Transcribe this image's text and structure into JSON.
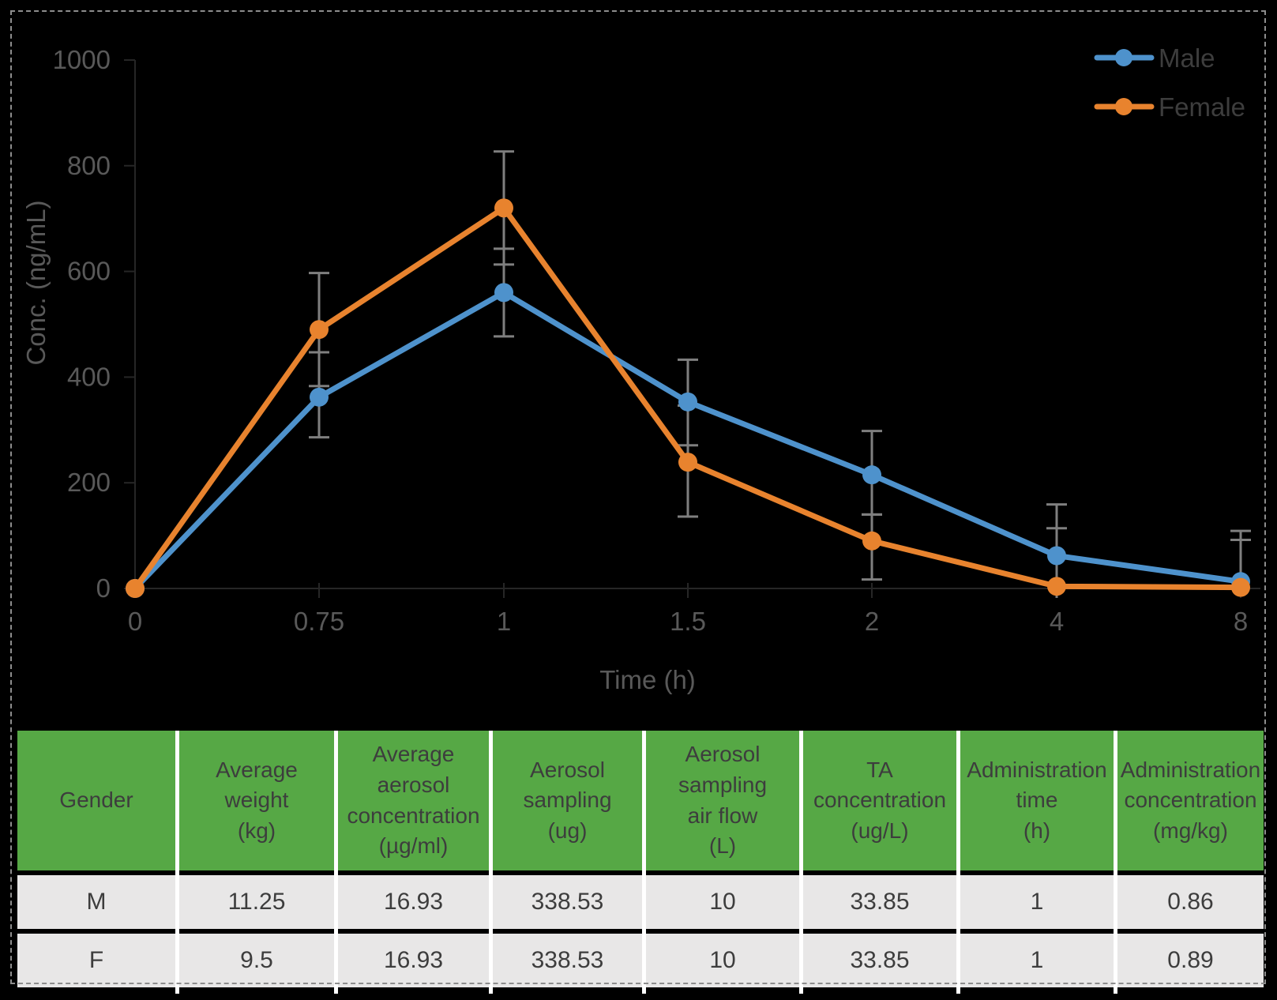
{
  "chart_data": {
    "type": "line",
    "title": "",
    "xlabel": "Time (h)",
    "ylabel": "Conc. (ng/mL)",
    "x_categories": [
      "0",
      "0.75",
      "1",
      "1.5",
      "2",
      "4",
      "8"
    ],
    "y_ticks": [
      "0",
      "200",
      "400",
      "600",
      "800",
      "1000"
    ],
    "ylim": [
      0,
      1000
    ],
    "grid": false,
    "legend_position": "top-right",
    "error_bar_color": "#7F7F7F",
    "axis_color": "#262626",
    "label_color": "#595959",
    "legend_text_color": "#3d3d3d",
    "series": [
      {
        "name": "Male",
        "color": "#4E92CC",
        "values": [
          0,
          362,
          560,
          353,
          215,
          62,
          13
        ],
        "err_hi": [
          null,
          447,
          643,
          433,
          298,
          159,
          92
        ],
        "err_lo": [
          null,
          286,
          477,
          271,
          140,
          null,
          null
        ]
      },
      {
        "name": "Female",
        "color": "#E8832E",
        "values": [
          0,
          490,
          720,
          239,
          90,
          4,
          2
        ],
        "err_hi": [
          null,
          597,
          827,
          346,
          140,
          114,
          109
        ],
        "err_lo": [
          null,
          383,
          613,
          136,
          17,
          -18,
          null
        ]
      }
    ]
  },
  "table": {
    "header_bg": "#56A845",
    "row_bg": "#E8E7E7",
    "separator_color": "#FFFFFF",
    "text_color": "#3D3D3D",
    "columns": [
      "Gender",
      "Average\nweight\n(kg)",
      "Average\naerosol\nconcentration\n(µg/ml)",
      "Aerosol\nsampling\n(ug)",
      "Aerosol\nsampling\nair flow\n(L)",
      "TA\nconcentration\n(ug/L)",
      "Administration\ntime\n(h)",
      "Administration\nconcentration\n(mg/kg)"
    ],
    "rows": [
      [
        "M",
        "11.25",
        "16.93",
        "338.53",
        "10",
        "33.85",
        "1",
        "0.86"
      ],
      [
        "F",
        "9.5",
        "16.93",
        "338.53",
        "10",
        "33.85",
        "1",
        "0.89"
      ]
    ]
  }
}
